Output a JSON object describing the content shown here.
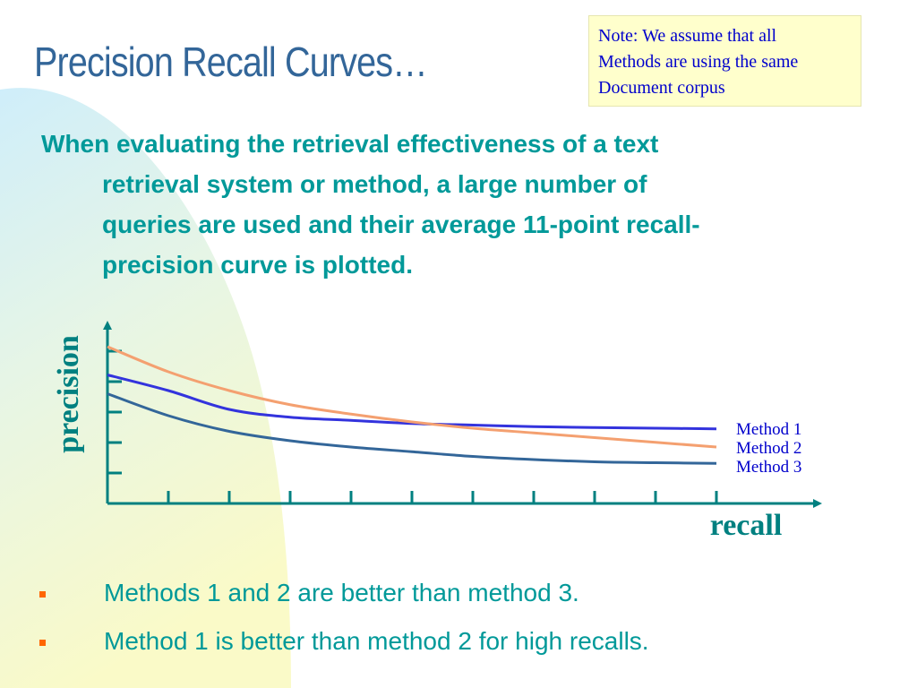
{
  "slide": {
    "title": "Precision Recall Curves…",
    "note": {
      "lines": [
        "Note: We assume that all",
        "Methods are using the same",
        "Document corpus"
      ]
    },
    "body": {
      "lines": [
        "When evaluating the retrieval effectiveness of a text",
        "retrieval system or method, a large number of",
        "queries are used and their average 11-point recall-",
        "precision curve is plotted."
      ]
    },
    "bullets": [
      "Methods 1 and 2 are better than method 3.",
      "Method 1 is better than method 2 for high recalls."
    ]
  },
  "colors": {
    "title": "#336699",
    "body_text": "#009999",
    "bullet": "#ff6600",
    "note_bg": "#ffffcc",
    "note_text": "#0000cc",
    "axis": "#008080",
    "method1": "#3333dd",
    "method2": "#f4a070",
    "method3": "#336699"
  },
  "chart_data": {
    "type": "line",
    "xlabel": "recall",
    "ylabel": "precision",
    "grid": false,
    "x_ticks": 11,
    "y_ticks": 5,
    "xlim": [
      0,
      10
    ],
    "ylim": [
      0,
      5.2
    ],
    "series": [
      {
        "name": "Method 1",
        "color": "#3333dd",
        "x": [
          0,
          1,
          2,
          3,
          4,
          5,
          6,
          7,
          8,
          9,
          10
        ],
        "y": [
          4.1,
          3.6,
          3.0,
          2.75,
          2.65,
          2.55,
          2.5,
          2.45,
          2.42,
          2.4,
          2.38
        ]
      },
      {
        "name": "Method 2",
        "color": "#f4a070",
        "x": [
          0,
          1,
          2,
          3,
          4,
          5,
          6,
          7,
          8,
          9,
          10
        ],
        "y": [
          5.0,
          4.2,
          3.6,
          3.15,
          2.85,
          2.6,
          2.4,
          2.25,
          2.1,
          1.95,
          1.8
        ]
      },
      {
        "name": "Method 3",
        "color": "#336699",
        "x": [
          0,
          1,
          2,
          3,
          4,
          5,
          6,
          7,
          8,
          9,
          10
        ],
        "y": [
          3.5,
          2.8,
          2.3,
          2.0,
          1.8,
          1.65,
          1.5,
          1.4,
          1.33,
          1.3,
          1.28
        ]
      }
    ]
  }
}
